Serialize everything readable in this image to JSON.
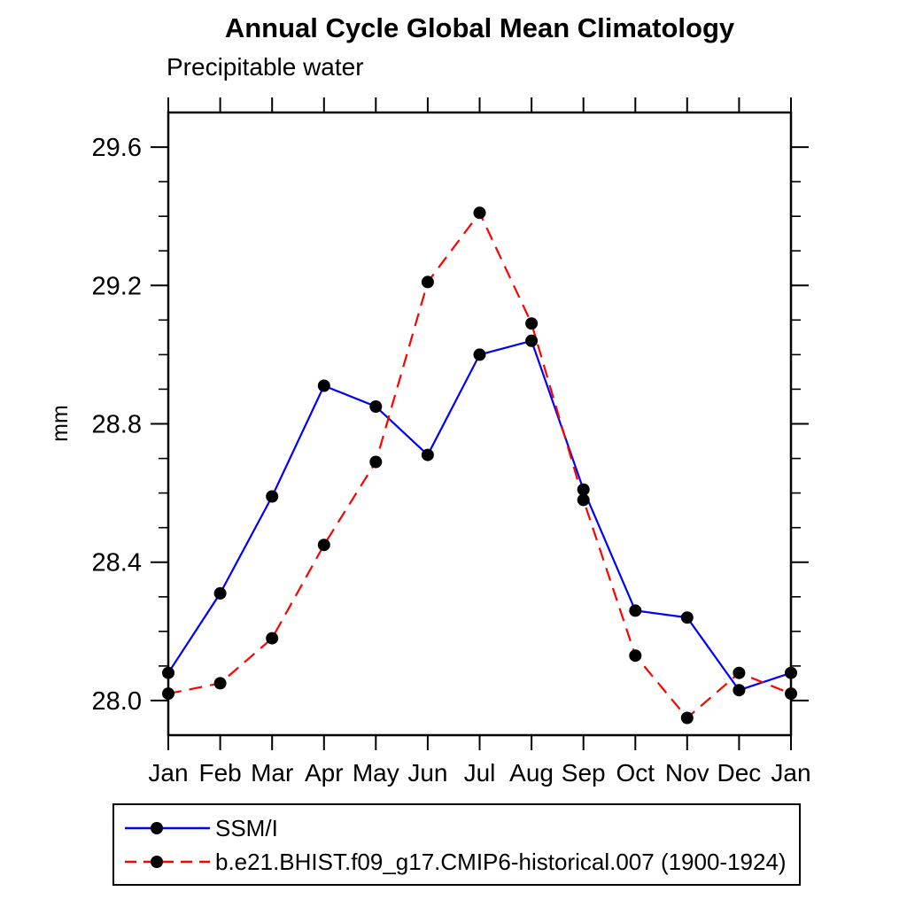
{
  "chart_data": {
    "type": "line",
    "title": "Annual Cycle Global Mean Climatology",
    "subtitle": "Precipitable water",
    "xlabel": "",
    "ylabel": "mm",
    "categories": [
      "Jan",
      "Feb",
      "Mar",
      "Apr",
      "May",
      "Jun",
      "Jul",
      "Aug",
      "Sep",
      "Oct",
      "Nov",
      "Dec",
      "Jan"
    ],
    "series": [
      {
        "name": "SSM/I",
        "color": "#0000ff",
        "style": "solid",
        "marker": "black-dot",
        "values": [
          28.08,
          28.31,
          28.59,
          28.91,
          28.85,
          28.71,
          29.0,
          29.04,
          28.61,
          28.26,
          28.24,
          28.03,
          28.08
        ]
      },
      {
        "name": "b.e21.BHIST.f09_g17.CMIP6-historical.007 (1900-1924)",
        "color": "#ff0000",
        "style": "dashed",
        "marker": "black-dot",
        "values": [
          28.02,
          28.05,
          28.18,
          28.45,
          28.69,
          29.21,
          29.41,
          29.09,
          28.58,
          28.13,
          27.95,
          28.08,
          28.02
        ]
      }
    ],
    "ylim": [
      27.9,
      29.7
    ],
    "yticks_major": [
      28.0,
      28.4,
      28.8,
      29.2,
      29.6
    ],
    "ytick_minor_step": 0.1,
    "grid": false,
    "legend_position": "bottom-left-box"
  },
  "colors": {
    "axis": "#000000",
    "marker": "#000000",
    "background": "#ffffff"
  }
}
